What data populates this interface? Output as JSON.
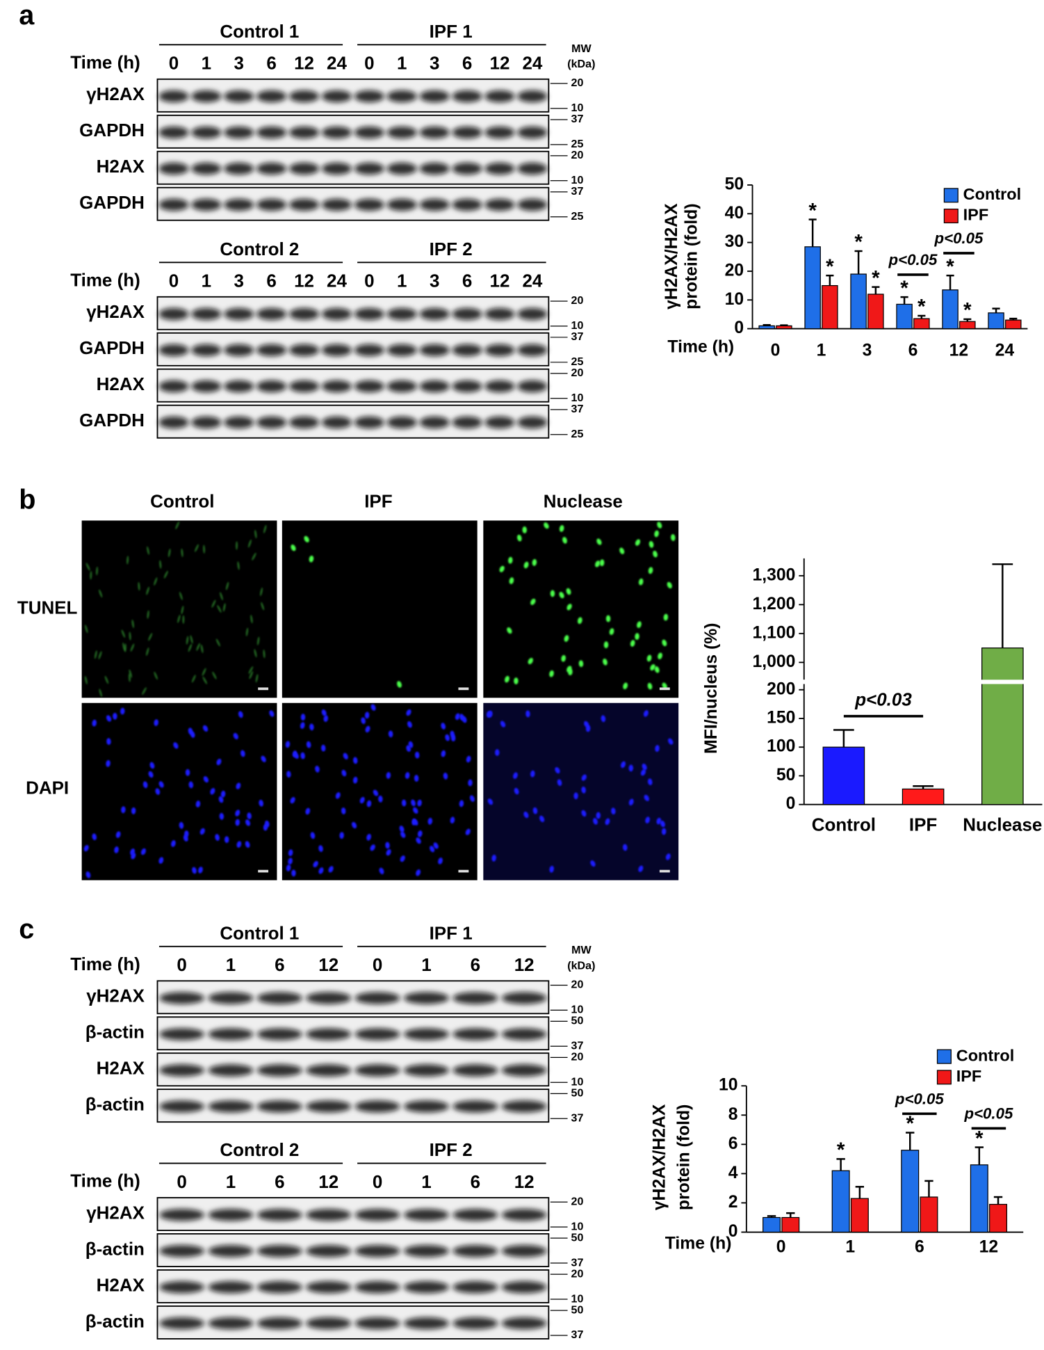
{
  "panel_labels": [
    "a",
    "b",
    "c"
  ],
  "blots": [
    {
      "groups": [
        "Control 1",
        "IPF 1"
      ],
      "time_label": "Time (h)",
      "times": [
        "0",
        "1",
        "3",
        "6",
        "12",
        "24",
        "0",
        "1",
        "3",
        "6",
        "12",
        "24"
      ],
      "mw_header": [
        "MW",
        "(kDa)"
      ],
      "rows": [
        {
          "label": "γH2AX",
          "mw": [
            20,
            10
          ]
        },
        {
          "label": "GAPDH",
          "mw": [
            37,
            25
          ]
        },
        {
          "label": "H2AX",
          "mw": [
            20,
            10
          ]
        },
        {
          "label": "GAPDH",
          "mw": [
            37,
            25
          ]
        }
      ]
    },
    {
      "groups": [
        "Control 2",
        "IPF 2"
      ],
      "time_label": "Time (h)",
      "times": [
        "0",
        "1",
        "3",
        "6",
        "12",
        "24",
        "0",
        "1",
        "3",
        "6",
        "12",
        "24"
      ],
      "rows": [
        {
          "label": "γH2AX",
          "mw": [
            20,
            10
          ]
        },
        {
          "label": "GAPDH",
          "mw": [
            37,
            25
          ]
        },
        {
          "label": "H2AX",
          "mw": [
            20,
            10
          ]
        },
        {
          "label": "GAPDH",
          "mw": [
            37,
            25
          ]
        }
      ]
    },
    {
      "groups": [
        "Control 1",
        "IPF 1"
      ],
      "time_label": "Time (h)",
      "times": [
        "0",
        "1",
        "6",
        "12",
        "0",
        "1",
        "6",
        "12"
      ],
      "mw_header": [
        "MW",
        "(kDa)"
      ],
      "rows": [
        {
          "label": "γH2AX",
          "mw": [
            20,
            10
          ]
        },
        {
          "label": "β-actin",
          "mw": [
            50,
            37
          ]
        },
        {
          "label": "H2AX",
          "mw": [
            20,
            10
          ]
        },
        {
          "label": "β-actin",
          "mw": [
            50,
            37
          ]
        }
      ]
    },
    {
      "groups": [
        "Control 2",
        "IPF 2"
      ],
      "time_label": "Time (h)",
      "times": [
        "0",
        "1",
        "6",
        "12",
        "0",
        "1",
        "6",
        "12"
      ],
      "rows": [
        {
          "label": "γH2AX",
          "mw": [
            20,
            10
          ]
        },
        {
          "label": "β-actin",
          "mw": [
            50,
            37
          ]
        },
        {
          "label": "H2AX",
          "mw": [
            20,
            10
          ]
        },
        {
          "label": "β-actin",
          "mw": [
            50,
            37
          ]
        }
      ]
    }
  ],
  "micrographs": {
    "columns": [
      "Control",
      "IPF",
      "Nuclease"
    ],
    "rows": [
      "TUNEL",
      "DAPI"
    ]
  },
  "chart_data": [
    {
      "type": "grouped-bar",
      "ylabel": [
        "γH2AX/H2AX",
        "protein (fold)"
      ],
      "xlabel": "Time (h)",
      "categories": [
        "0",
        "1",
        "3",
        "6",
        "12",
        "24"
      ],
      "series": [
        {
          "name": "Control",
          "color": "#1f6fe8",
          "values": [
            1,
            28.5,
            19,
            8.5,
            13.5,
            5.5
          ],
          "errors": [
            0.3,
            9.5,
            8,
            2.5,
            5,
            1.5
          ],
          "stars": [
            null,
            "*",
            "*",
            "*",
            "*",
            null
          ]
        },
        {
          "name": "IPF",
          "color": "#f01818",
          "values": [
            1,
            15,
            12,
            3.5,
            2.5,
            3
          ],
          "errors": [
            0.2,
            3.5,
            2.5,
            1,
            0.8,
            0.5
          ],
          "stars": [
            null,
            "*",
            "*",
            "*",
            "*",
            null
          ]
        }
      ],
      "annotations": [
        {
          "text": "p<0.05",
          "category": "6"
        },
        {
          "text": "p<0.05",
          "category": "12"
        }
      ],
      "ylim": [
        0,
        50
      ],
      "yticks": [
        0,
        10,
        20,
        30,
        40,
        50
      ]
    },
    {
      "type": "broken-bar",
      "ylabel": "MFI/nucleus (%)",
      "categories": [
        "Control",
        "IPF",
        "Nuclease"
      ],
      "values": [
        100,
        27,
        1050
      ],
      "errors": [
        30,
        5,
        290
      ],
      "colors": [
        "#1a1aff",
        "#ff1a1a",
        "#70ad47"
      ],
      "annotations": [
        {
          "text": "p<0.03",
          "from": "Control",
          "to": "IPF"
        }
      ],
      "y_segments": [
        {
          "ylim": [
            0,
            210
          ],
          "yticks": [
            0,
            50,
            100,
            150,
            200
          ]
        },
        {
          "ylim": [
            940,
            1360
          ],
          "yticks": [
            {
              "value": 1000,
              "label": "1,000"
            },
            {
              "value": 1100,
              "label": "1,100"
            },
            {
              "value": 1200,
              "label": "1,200"
            },
            {
              "value": 1300,
              "label": "1,300"
            }
          ]
        }
      ]
    },
    {
      "type": "grouped-bar",
      "ylabel": [
        "γH2AX/H2AX",
        "protein (fold)"
      ],
      "xlabel": "Time (h)",
      "categories": [
        "0",
        "1",
        "6",
        "12"
      ],
      "series": [
        {
          "name": "Control",
          "color": "#1f6fe8",
          "values": [
            1,
            4.2,
            5.6,
            4.6
          ],
          "errors": [
            0.1,
            0.8,
            1.2,
            1.2
          ],
          "stars": [
            null,
            "*",
            "*",
            "*"
          ]
        },
        {
          "name": "IPF",
          "color": "#f01818",
          "values": [
            1,
            2.3,
            2.4,
            1.9
          ],
          "errors": [
            0.3,
            0.8,
            1.1,
            0.5
          ],
          "stars": [
            null,
            null,
            null,
            null
          ]
        }
      ],
      "annotations": [
        {
          "text": "p<0.05",
          "category": "6"
        },
        {
          "text": "p<0.05",
          "category": "12"
        }
      ],
      "ylim": [
        0,
        10
      ],
      "yticks": [
        0,
        2,
        4,
        6,
        8,
        10
      ]
    }
  ]
}
